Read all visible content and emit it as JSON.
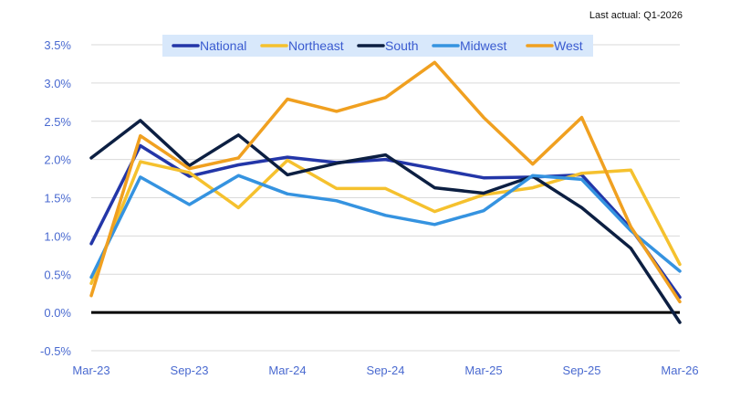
{
  "note": "Last actual: Q1-2026",
  "chart_data": {
    "type": "line",
    "title": "",
    "xlabel": "",
    "ylabel": "",
    "x": [
      "Mar-23",
      "Jun-23",
      "Sep-23",
      "Dec-23",
      "Mar-24",
      "Jun-24",
      "Sep-24",
      "Dec-24",
      "Mar-25",
      "Jun-25",
      "Sep-25",
      "Dec-25",
      "Mar-26"
    ],
    "x_tick_labels": [
      "Mar-23",
      "Sep-23",
      "Mar-24",
      "Sep-24",
      "Mar-25",
      "Sep-25",
      "Mar-26"
    ],
    "y_tick_labels": [
      "3.5%",
      "3.0%",
      "2.5%",
      "2.0%",
      "1.5%",
      "1.0%",
      "0.5%",
      "0.0%",
      "-0.5%"
    ],
    "y_ticks": [
      3.5,
      3.0,
      2.5,
      2.0,
      1.5,
      1.0,
      0.5,
      0.0,
      -0.5
    ],
    "ylim": [
      -0.5,
      3.5
    ],
    "y_unit": "%",
    "grid": "horizontal",
    "legend_position": "top-center",
    "zero_line_color": "#000000",
    "series": [
      {
        "name": "National",
        "color": "#2336a8",
        "values": [
          0.9,
          2.18,
          1.78,
          1.93,
          2.03,
          1.96,
          2.0,
          1.88,
          1.76,
          1.77,
          1.8,
          1.1,
          0.2
        ]
      },
      {
        "name": "Northeast",
        "color": "#f5c12e",
        "values": [
          0.38,
          1.97,
          1.83,
          1.37,
          1.99,
          1.62,
          1.62,
          1.32,
          1.54,
          1.63,
          1.82,
          1.86,
          0.63
        ]
      },
      {
        "name": "South",
        "color": "#0c1f42",
        "values": [
          2.02,
          2.51,
          1.92,
          2.32,
          1.8,
          1.95,
          2.06,
          1.63,
          1.56,
          1.78,
          1.37,
          0.84,
          -0.13
        ]
      },
      {
        "name": "Midwest",
        "color": "#3593e0",
        "values": [
          0.46,
          1.77,
          1.41,
          1.79,
          1.55,
          1.46,
          1.27,
          1.15,
          1.33,
          1.79,
          1.74,
          1.07,
          0.54
        ]
      },
      {
        "name": "West",
        "color": "#f0a020",
        "values": [
          0.22,
          2.31,
          1.88,
          2.02,
          2.79,
          2.63,
          2.81,
          3.27,
          2.55,
          1.94,
          2.55,
          1.12,
          0.14
        ]
      }
    ]
  }
}
